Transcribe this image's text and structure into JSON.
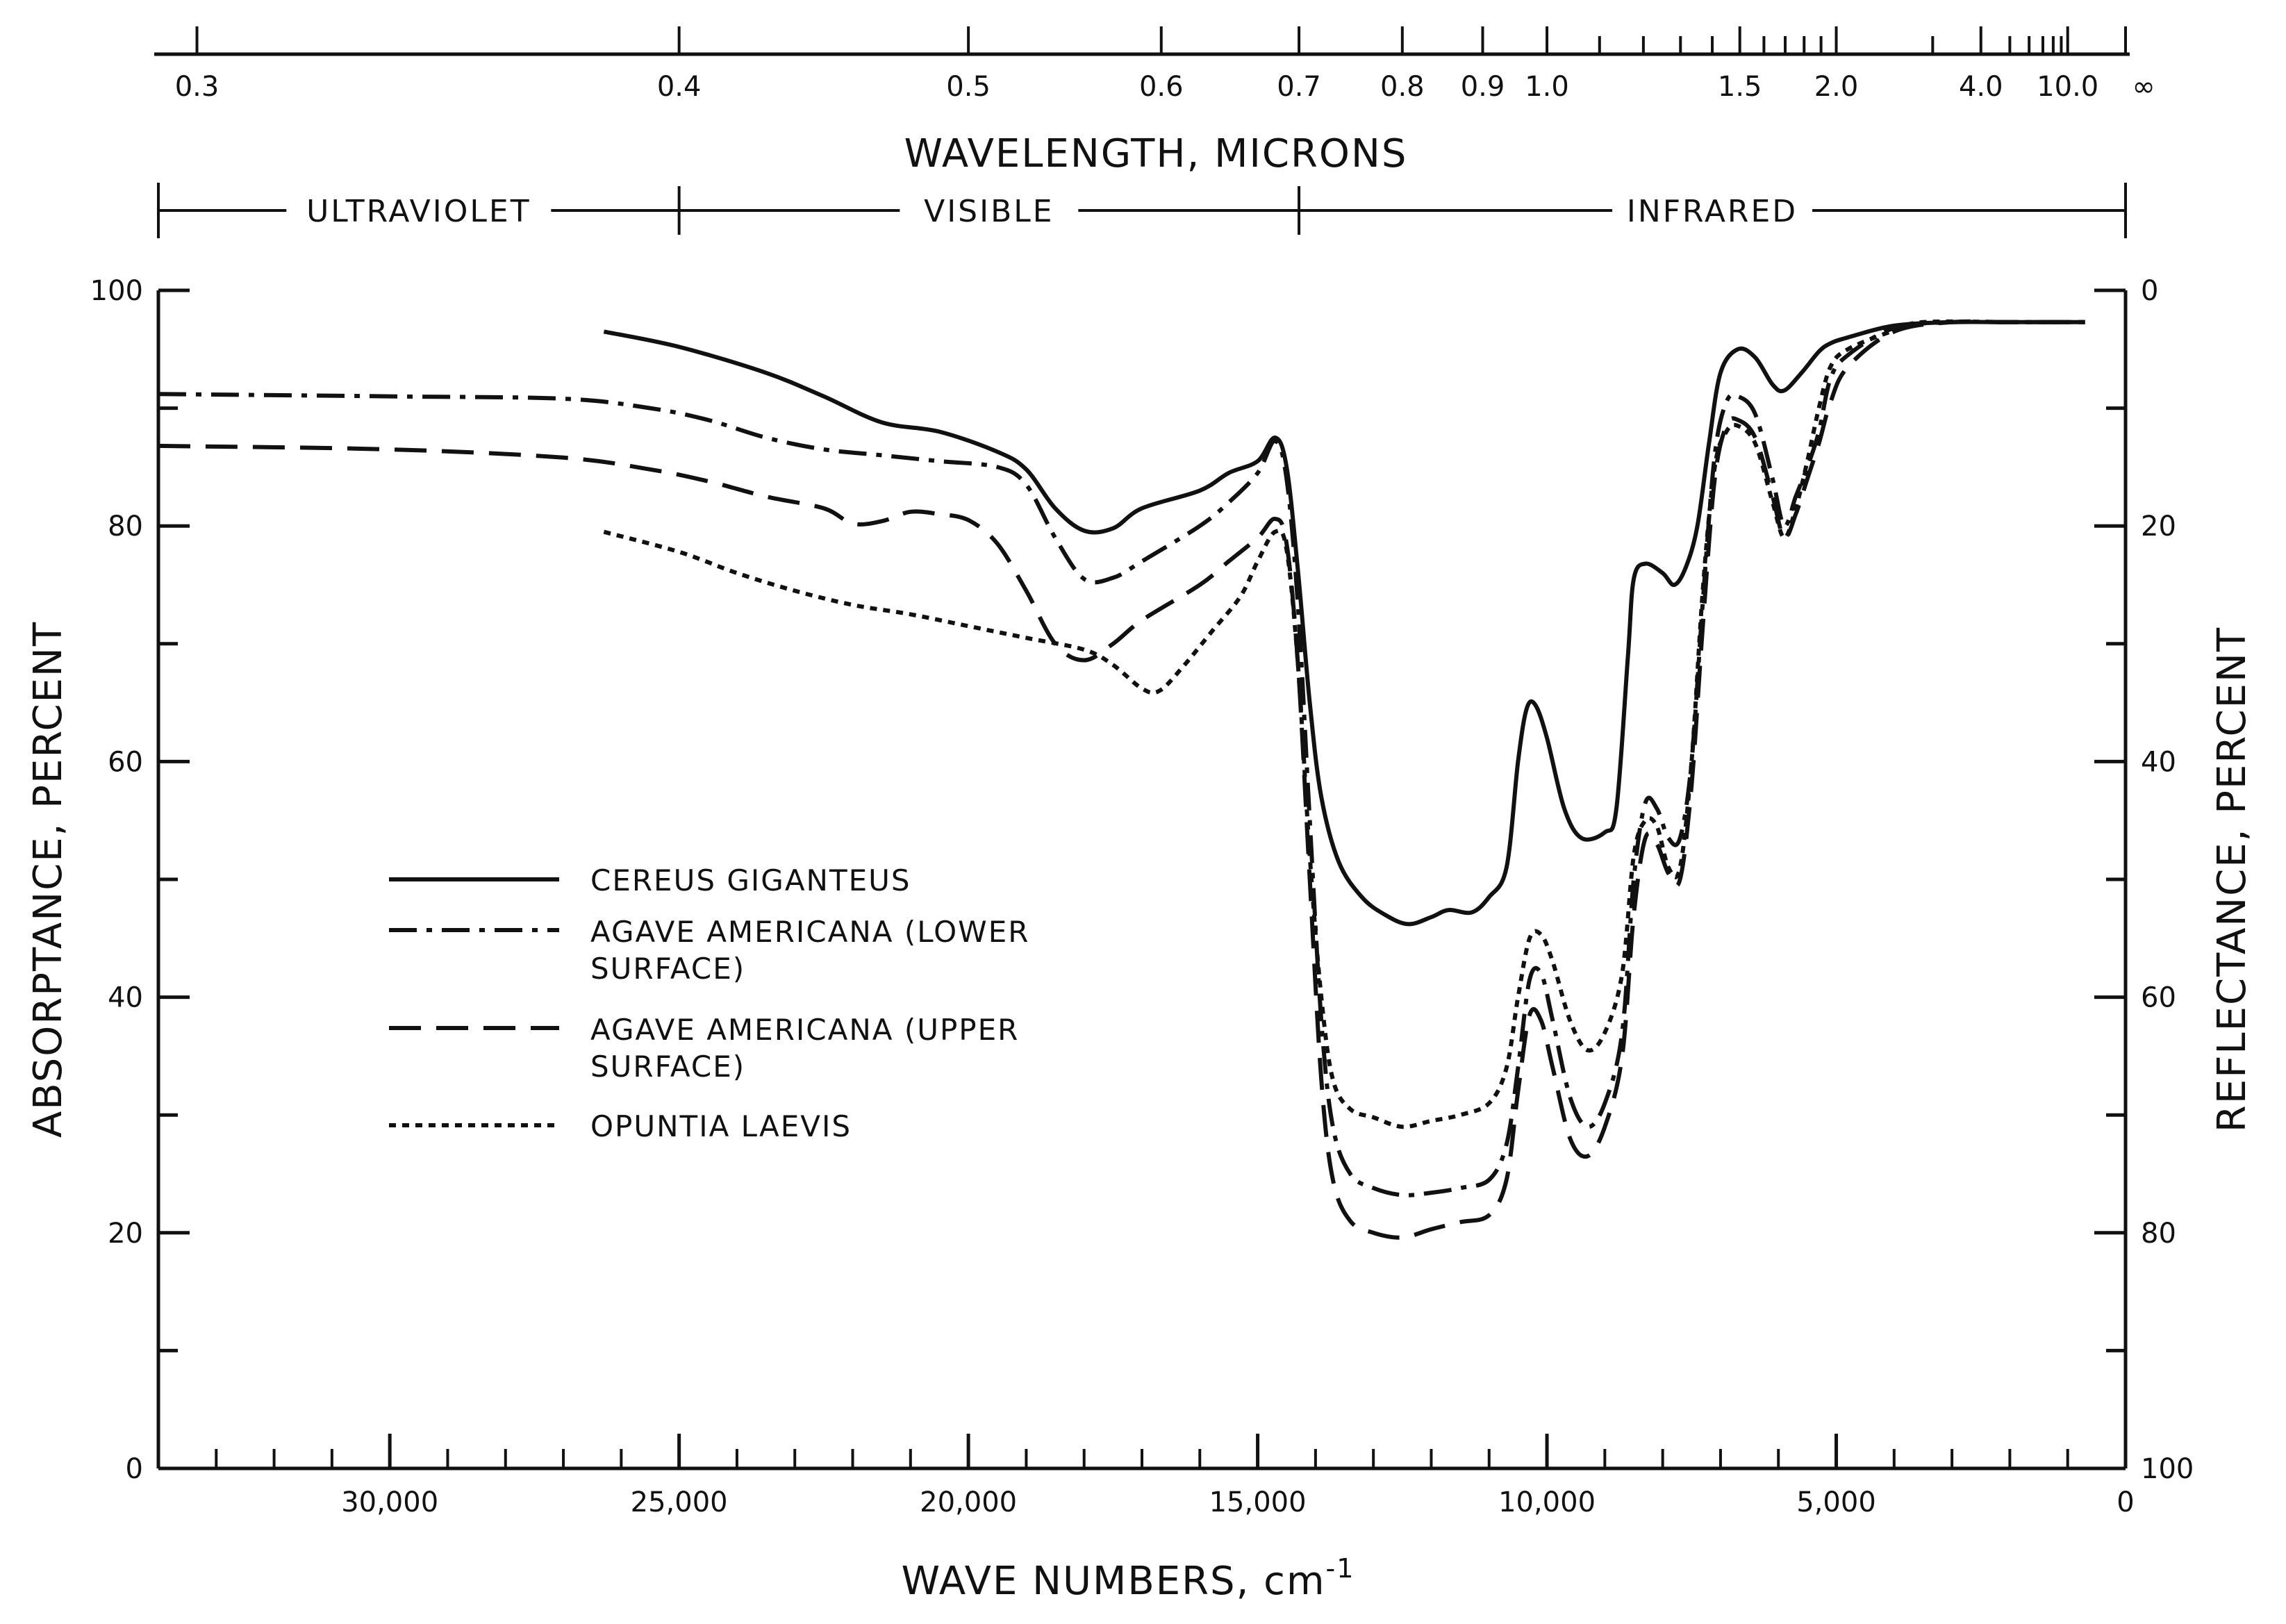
{
  "chart_data": {
    "type": "line",
    "x_axis": {
      "label": "WAVE NUMBERS, cm",
      "label_superscript": "-1",
      "range": [
        34000,
        0
      ],
      "ticks": [
        30000,
        25000,
        20000,
        15000,
        10000,
        5000,
        0
      ],
      "tick_labels": [
        "30,000",
        "25,000",
        "20,000",
        "15,000",
        "10,000",
        "5,000",
        "0"
      ],
      "minor_step": 1000
    },
    "y_axis_left": {
      "label": "ABSORPTANCE, PERCENT",
      "range": [
        0,
        100
      ],
      "ticks": [
        0,
        20,
        40,
        60,
        80,
        100
      ],
      "tick_labels": [
        "0",
        "20",
        "40",
        "60",
        "80",
        "100"
      ]
    },
    "y_axis_right": {
      "label": "REFLECTANCE, PERCENT",
      "ticks": [
        0,
        20,
        40,
        60,
        80,
        100
      ],
      "tick_labels": [
        "100",
        "80",
        "60",
        "40",
        "20",
        "0"
      ]
    },
    "top_axis": {
      "label": "WAVELENGTH, MICRONS",
      "ticks": [
        {
          "value": 0.3,
          "label": "0.3"
        },
        {
          "value": 0.4,
          "label": "0.4"
        },
        {
          "value": 0.5,
          "label": "0.5"
        },
        {
          "value": 0.6,
          "label": "0.6"
        },
        {
          "value": 0.7,
          "label": "0.7"
        },
        {
          "value": 0.8,
          "label": "0.8"
        },
        {
          "value": 0.9,
          "label": "0.9"
        },
        {
          "value": 1.0,
          "label": "1.0"
        },
        {
          "value": 1.5,
          "label": "1.5"
        },
        {
          "value": 2.0,
          "label": "2.0"
        },
        {
          "value": 4.0,
          "label": "4.0"
        },
        {
          "value": 10.0,
          "label": "10.0"
        },
        {
          "value": null,
          "label": "∞"
        }
      ],
      "minor_ticks": [
        1.1,
        1.2,
        1.3,
        1.4,
        1.6,
        1.7,
        1.8,
        1.9,
        3.0,
        5.0,
        6.0,
        7.0,
        8.0,
        9.0
      ]
    },
    "spectral_bands": [
      {
        "label": "ULTRAVIOLET",
        "from": 34000,
        "to": 25000
      },
      {
        "label": "VISIBLE",
        "from": 25000,
        "to": 14286
      },
      {
        "label": "INFRARED",
        "from": 14286,
        "to": 0
      }
    ],
    "legend_position": "center-left",
    "grid": false,
    "series": [
      {
        "name": "CEREUS GIGANTEUS",
        "dash": "solid",
        "points": [
          [
            26300,
            96.5
          ],
          [
            25000,
            95.2
          ],
          [
            23500,
            93.0
          ],
          [
            22500,
            91.0
          ],
          [
            21500,
            88.8
          ],
          [
            20500,
            88.0
          ],
          [
            19500,
            86.3
          ],
          [
            19000,
            84.8
          ],
          [
            18500,
            81.5
          ],
          [
            18000,
            79.6
          ],
          [
            17500,
            79.8
          ],
          [
            17000,
            81.5
          ],
          [
            16000,
            83.0
          ],
          [
            15500,
            84.5
          ],
          [
            15000,
            85.5
          ],
          [
            14700,
            87.5
          ],
          [
            14500,
            85.0
          ],
          [
            14300,
            76.0
          ],
          [
            14100,
            65.0
          ],
          [
            13900,
            57.0
          ],
          [
            13600,
            51.5
          ],
          [
            13200,
            48.5
          ],
          [
            12800,
            47.0
          ],
          [
            12400,
            46.2
          ],
          [
            12000,
            46.8
          ],
          [
            11700,
            47.4
          ],
          [
            11300,
            47.2
          ],
          [
            11000,
            48.5
          ],
          [
            10700,
            51.0
          ],
          [
            10500,
            60.0
          ],
          [
            10350,
            64.5
          ],
          [
            10200,
            64.8
          ],
          [
            10000,
            62.0
          ],
          [
            9700,
            56.0
          ],
          [
            9400,
            53.5
          ],
          [
            9000,
            54.0
          ],
          [
            8800,
            56.0
          ],
          [
            8600,
            69.0
          ],
          [
            8500,
            75.5
          ],
          [
            8300,
            76.8
          ],
          [
            8000,
            76.0
          ],
          [
            7800,
            75.0
          ],
          [
            7600,
            76.5
          ],
          [
            7400,
            80.0
          ],
          [
            7200,
            87.0
          ],
          [
            7000,
            93.0
          ],
          [
            6700,
            95.0
          ],
          [
            6400,
            94.3
          ],
          [
            6100,
            92.0
          ],
          [
            5900,
            91.5
          ],
          [
            5600,
            93.0
          ],
          [
            5300,
            94.8
          ],
          [
            5100,
            95.5
          ],
          [
            4800,
            96.0
          ],
          [
            4000,
            97.0
          ],
          [
            3000,
            97.3
          ],
          [
            2000,
            97.3
          ],
          [
            1000,
            97.3
          ],
          [
            700,
            97.3
          ]
        ]
      },
      {
        "name": "AGAVE AMERICANA (LOWER SURFACE)",
        "dash": "dash-dot",
        "points": [
          [
            34000,
            91.2
          ],
          [
            30000,
            91.0
          ],
          [
            27000,
            90.8
          ],
          [
            25500,
            90.0
          ],
          [
            24500,
            89.0
          ],
          [
            23500,
            87.5
          ],
          [
            22500,
            86.5
          ],
          [
            21500,
            86.0
          ],
          [
            20500,
            85.5
          ],
          [
            19500,
            85.0
          ],
          [
            19000,
            83.5
          ],
          [
            18500,
            79.0
          ],
          [
            18000,
            75.5
          ],
          [
            17500,
            75.6
          ],
          [
            17000,
            77.0
          ],
          [
            16000,
            80.0
          ],
          [
            15500,
            82.0
          ],
          [
            15000,
            84.5
          ],
          [
            14700,
            87.2
          ],
          [
            14500,
            84.0
          ],
          [
            14300,
            73.0
          ],
          [
            14100,
            55.0
          ],
          [
            13900,
            38.0
          ],
          [
            13700,
            29.0
          ],
          [
            13400,
            25.0
          ],
          [
            13000,
            23.8
          ],
          [
            12500,
            23.2
          ],
          [
            12000,
            23.4
          ],
          [
            11500,
            23.8
          ],
          [
            11000,
            24.5
          ],
          [
            10700,
            27.5
          ],
          [
            10500,
            34.0
          ],
          [
            10300,
            41.5
          ],
          [
            10100,
            42.0
          ],
          [
            9900,
            38.0
          ],
          [
            9600,
            31.5
          ],
          [
            9300,
            29.0
          ],
          [
            9000,
            31.0
          ],
          [
            8700,
            37.0
          ],
          [
            8500,
            50.0
          ],
          [
            8300,
            56.5
          ],
          [
            8100,
            56.0
          ],
          [
            7900,
            53.5
          ],
          [
            7700,
            53.5
          ],
          [
            7500,
            60.0
          ],
          [
            7300,
            74.0
          ],
          [
            7100,
            86.0
          ],
          [
            6900,
            90.5
          ],
          [
            6700,
            91.0
          ],
          [
            6400,
            89.5
          ],
          [
            6100,
            84.0
          ],
          [
            5900,
            80.0
          ],
          [
            5700,
            82.5
          ],
          [
            5500,
            85.0
          ],
          [
            5300,
            88.0
          ],
          [
            5100,
            92.5
          ],
          [
            4800,
            94.5
          ],
          [
            4000,
            96.8
          ],
          [
            3000,
            97.3
          ],
          [
            2000,
            97.3
          ],
          [
            700,
            97.3
          ]
        ]
      },
      {
        "name": "AGAVE AMERICANA (UPPER SURFACE)",
        "dash": "dashed",
        "points": [
          [
            34000,
            86.8
          ],
          [
            30000,
            86.5
          ],
          [
            27000,
            85.8
          ],
          [
            25500,
            84.8
          ],
          [
            24500,
            83.8
          ],
          [
            23500,
            82.5
          ],
          [
            22500,
            81.5
          ],
          [
            22000,
            80.2
          ],
          [
            21500,
            80.4
          ],
          [
            21000,
            81.2
          ],
          [
            20500,
            81.0
          ],
          [
            20000,
            80.5
          ],
          [
            19500,
            78.5
          ],
          [
            19000,
            74.5
          ],
          [
            18500,
            70.0
          ],
          [
            18000,
            68.6
          ],
          [
            17500,
            70.0
          ],
          [
            17000,
            72.0
          ],
          [
            16000,
            75.0
          ],
          [
            15500,
            77.0
          ],
          [
            15000,
            79.0
          ],
          [
            14700,
            80.6
          ],
          [
            14500,
            78.5
          ],
          [
            14300,
            68.0
          ],
          [
            14100,
            50.0
          ],
          [
            13900,
            33.0
          ],
          [
            13700,
            24.5
          ],
          [
            13400,
            21.0
          ],
          [
            13000,
            20.0
          ],
          [
            12500,
            19.6
          ],
          [
            12000,
            20.3
          ],
          [
            11500,
            20.9
          ],
          [
            11000,
            21.5
          ],
          [
            10700,
            24.5
          ],
          [
            10500,
            32.0
          ],
          [
            10300,
            38.5
          ],
          [
            10100,
            38.0
          ],
          [
            9900,
            34.0
          ],
          [
            9600,
            28.0
          ],
          [
            9300,
            26.5
          ],
          [
            9000,
            29.0
          ],
          [
            8700,
            35.0
          ],
          [
            8500,
            47.0
          ],
          [
            8300,
            53.5
          ],
          [
            8100,
            53.0
          ],
          [
            7900,
            50.5
          ],
          [
            7700,
            50.0
          ],
          [
            7500,
            58.0
          ],
          [
            7300,
            72.0
          ],
          [
            7100,
            84.0
          ],
          [
            6900,
            88.5
          ],
          [
            6700,
            89.0
          ],
          [
            6400,
            87.5
          ],
          [
            6100,
            82.5
          ],
          [
            5900,
            79.0
          ],
          [
            5700,
            81.0
          ],
          [
            5500,
            84.0
          ],
          [
            5300,
            87.0
          ],
          [
            5100,
            90.5
          ],
          [
            4800,
            93.5
          ],
          [
            4000,
            96.5
          ],
          [
            3000,
            97.3
          ],
          [
            2000,
            97.3
          ],
          [
            700,
            97.3
          ]
        ]
      },
      {
        "name": "OPUNTIA LAEVIS",
        "dash": "dotted",
        "points": [
          [
            26300,
            79.5
          ],
          [
            25000,
            77.8
          ],
          [
            24000,
            76.0
          ],
          [
            23000,
            74.5
          ],
          [
            22000,
            73.3
          ],
          [
            21000,
            72.5
          ],
          [
            20000,
            71.5
          ],
          [
            19000,
            70.5
          ],
          [
            18000,
            69.5
          ],
          [
            17500,
            68.2
          ],
          [
            17000,
            66.2
          ],
          [
            16700,
            66.0
          ],
          [
            16300,
            68.0
          ],
          [
            15800,
            71.0
          ],
          [
            15300,
            74.0
          ],
          [
            15000,
            77.0
          ],
          [
            14700,
            79.5
          ],
          [
            14500,
            78.0
          ],
          [
            14300,
            68.0
          ],
          [
            14100,
            52.0
          ],
          [
            13900,
            40.0
          ],
          [
            13700,
            33.0
          ],
          [
            13400,
            30.5
          ],
          [
            13000,
            29.8
          ],
          [
            12500,
            29.0
          ],
          [
            12000,
            29.5
          ],
          [
            11500,
            30.0
          ],
          [
            11000,
            31.0
          ],
          [
            10700,
            34.0
          ],
          [
            10500,
            40.0
          ],
          [
            10300,
            45.0
          ],
          [
            10100,
            45.3
          ],
          [
            9900,
            43.0
          ],
          [
            9600,
            38.0
          ],
          [
            9300,
            35.5
          ],
          [
            9000,
            37.0
          ],
          [
            8700,
            42.0
          ],
          [
            8500,
            52.0
          ],
          [
            8300,
            55.0
          ],
          [
            8100,
            54.5
          ],
          [
            7900,
            51.0
          ],
          [
            7700,
            51.0
          ],
          [
            7500,
            60.0
          ],
          [
            7300,
            75.0
          ],
          [
            7100,
            85.0
          ],
          [
            6900,
            88.0
          ],
          [
            6700,
            88.5
          ],
          [
            6400,
            87.0
          ],
          [
            6100,
            82.0
          ],
          [
            5900,
            79.0
          ],
          [
            5700,
            81.5
          ],
          [
            5500,
            85.5
          ],
          [
            5300,
            90.0
          ],
          [
            5100,
            93.5
          ],
          [
            4800,
            95.0
          ],
          [
            4000,
            96.6
          ],
          [
            3500,
            97.3
          ],
          [
            2000,
            97.3
          ],
          [
            700,
            97.3
          ]
        ]
      }
    ]
  }
}
